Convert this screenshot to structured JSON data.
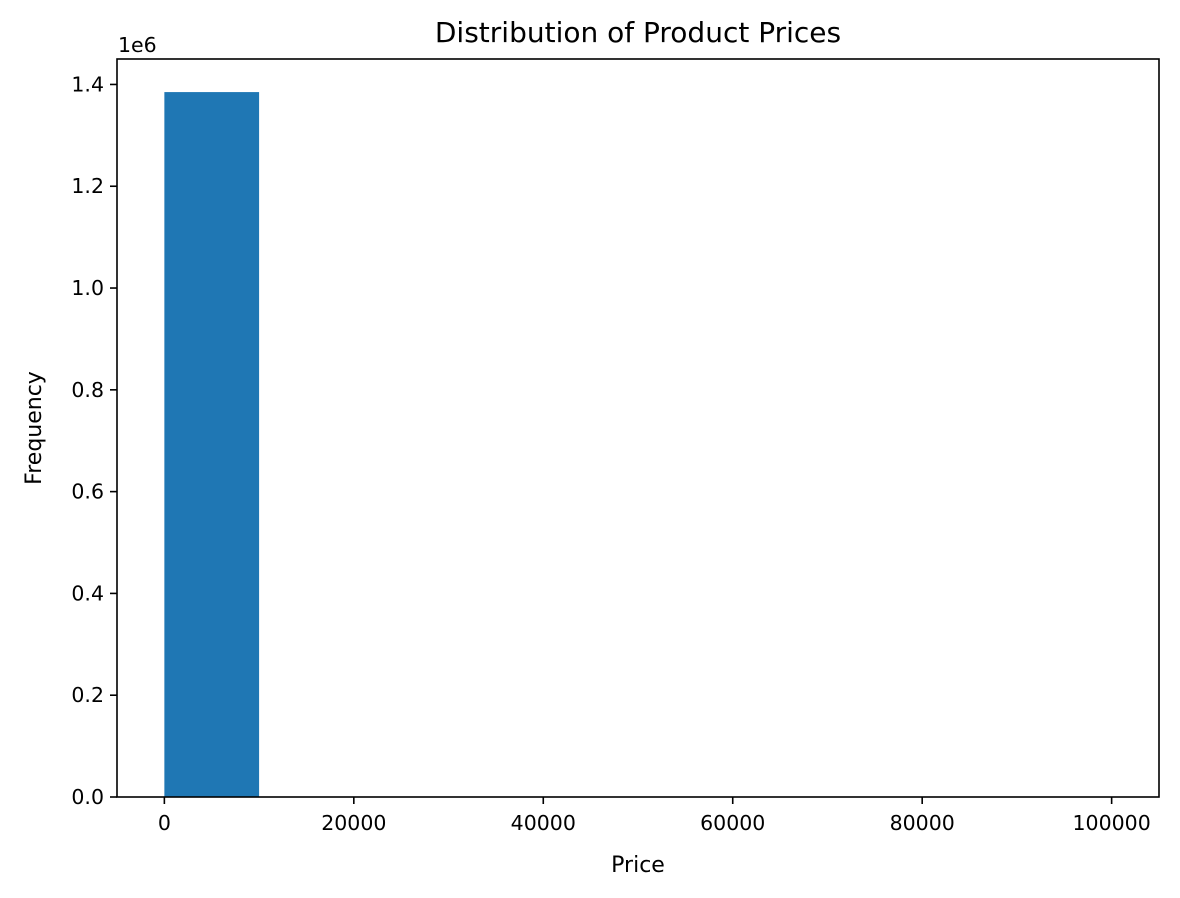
{
  "chart_data": {
    "type": "bar",
    "title": "Distribution of Product Prices",
    "xlabel": "Price",
    "ylabel": "Frequency",
    "y_offset_label": "1e6",
    "xlim": [
      -5000,
      105000
    ],
    "ylim": [
      0,
      1.45
    ],
    "x_ticks": [
      0,
      20000,
      40000,
      60000,
      80000,
      100000
    ],
    "x_tick_labels": [
      "0",
      "20000",
      "40000",
      "60000",
      "80000",
      "100000"
    ],
    "y_ticks": [
      0,
      0.2,
      0.4,
      0.6,
      0.8,
      1.0,
      1.2,
      1.4
    ],
    "y_tick_labels": [
      "0.0",
      "0.2",
      "0.4",
      "0.6",
      "0.8",
      "1.0",
      "1.2",
      "1.4"
    ],
    "bins": [
      {
        "x0": 0,
        "x1": 10000,
        "value": 1.385
      },
      {
        "x0": 10000,
        "x1": 20000,
        "value": 0
      },
      {
        "x0": 20000,
        "x1": 30000,
        "value": 0
      },
      {
        "x0": 30000,
        "x1": 40000,
        "value": 0
      },
      {
        "x0": 40000,
        "x1": 50000,
        "value": 0
      },
      {
        "x0": 50000,
        "x1": 60000,
        "value": 0
      },
      {
        "x0": 60000,
        "x1": 70000,
        "value": 0
      },
      {
        "x0": 70000,
        "x1": 80000,
        "value": 0
      },
      {
        "x0": 80000,
        "x1": 90000,
        "value": 0
      },
      {
        "x0": 90000,
        "x1": 100000,
        "value": 0
      }
    ],
    "bar_color": "#1f77b4",
    "grid": false,
    "legend": "none"
  }
}
